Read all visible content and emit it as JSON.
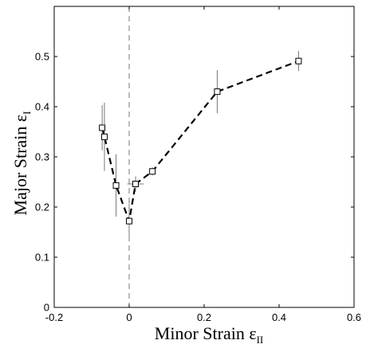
{
  "chart_data": {
    "type": "scatter",
    "xlabel": "Minor Strain ε",
    "xlabel_sub": "II",
    "ylabel": "Major Strain ε",
    "ylabel_sub": "I",
    "xlim": [
      -0.2,
      0.6
    ],
    "ylim": [
      0,
      0.6
    ],
    "x_ticks": [
      "-0.2",
      "0",
      "0.2",
      "0.4",
      "0.6"
    ],
    "y_ticks": [
      "0",
      "0.1",
      "0.2",
      "0.3",
      "0.4",
      "0.5"
    ],
    "grid": false,
    "reference_line": {
      "orientation": "vertical",
      "x": 0,
      "style": "dashed"
    },
    "series": [
      {
        "marker": "square",
        "line_style": "dashed",
        "points": [
          {
            "x": -0.072,
            "y": 0.358,
            "y_err": 0.045,
            "x_err": 0.005
          },
          {
            "x": -0.066,
            "y": 0.34,
            "y_err": 0.068,
            "x_err": 0.005
          },
          {
            "x": -0.035,
            "y": 0.243,
            "y_err": 0.062,
            "x_err": 0.006
          },
          {
            "x": 0.0,
            "y": 0.172,
            "y_err": 0.035,
            "x_err": 0.004
          },
          {
            "x": 0.017,
            "y": 0.246,
            "y_err": 0.015,
            "x_err": 0.022
          },
          {
            "x": 0.062,
            "y": 0.271,
            "y_err": 0.008,
            "x_err": 0.004
          },
          {
            "x": 0.235,
            "y": 0.43,
            "y_err": 0.043,
            "x_err": 0.005
          },
          {
            "x": 0.452,
            "y": 0.491,
            "y_err": 0.02,
            "x_err": 0.005
          }
        ]
      }
    ],
    "colors": {
      "line": "#000000",
      "marker": "#000000",
      "errorbar": "#777777",
      "reference": "#777777"
    }
  }
}
